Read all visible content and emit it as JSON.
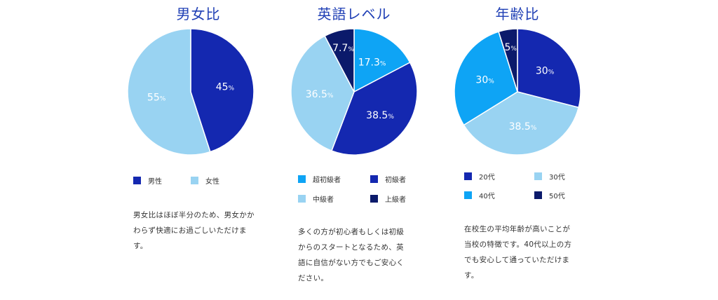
{
  "chart_data": [
    {
      "type": "pie",
      "title": "男女比",
      "slices": [
        {
          "label": "男性",
          "value": 45,
          "display": "45",
          "color": "#1428b0"
        },
        {
          "label": "女性",
          "value": 55,
          "display": "55",
          "color": "#99d3f2"
        }
      ],
      "unit": "%",
      "description": "男女比はほぼ半分のため、男女かかわらず快適にお過ごしいただけます。"
    },
    {
      "type": "pie",
      "title": "英語レベル",
      "slices": [
        {
          "label": "超初級者",
          "value": 17.3,
          "display": "17.3",
          "color": "#0ea4f5"
        },
        {
          "label": "初級者",
          "value": 38.5,
          "display": "38.5",
          "color": "#1428b0"
        },
        {
          "label": "中級者",
          "value": 36.5,
          "display": "36.5",
          "color": "#99d3f2"
        },
        {
          "label": "上級者",
          "value": 7.7,
          "display": "7.7",
          "color": "#0b1a6b"
        }
      ],
      "unit": "%",
      "description": "多くの方が初心者もしくは初級からのスタートとなるため、英語に自信がない方でもご安心ください。"
    },
    {
      "type": "pie",
      "title": "年齢比",
      "slices": [
        {
          "label": "20代",
          "value": 30,
          "display": "30",
          "color": "#1428b0"
        },
        {
          "label": "30代",
          "value": 38.5,
          "display": "38.5",
          "color": "#99d3f2"
        },
        {
          "label": "40代",
          "value": 30,
          "display": "30",
          "color": "#0ea4f5"
        },
        {
          "label": "50代",
          "value": 5,
          "display": "5",
          "color": "#0b1a6b"
        }
      ],
      "unit": "%",
      "description": "在校生の平均年齢が高いことが当校の特徴です。40代以上の方でも安心して通っていただけます。"
    }
  ]
}
